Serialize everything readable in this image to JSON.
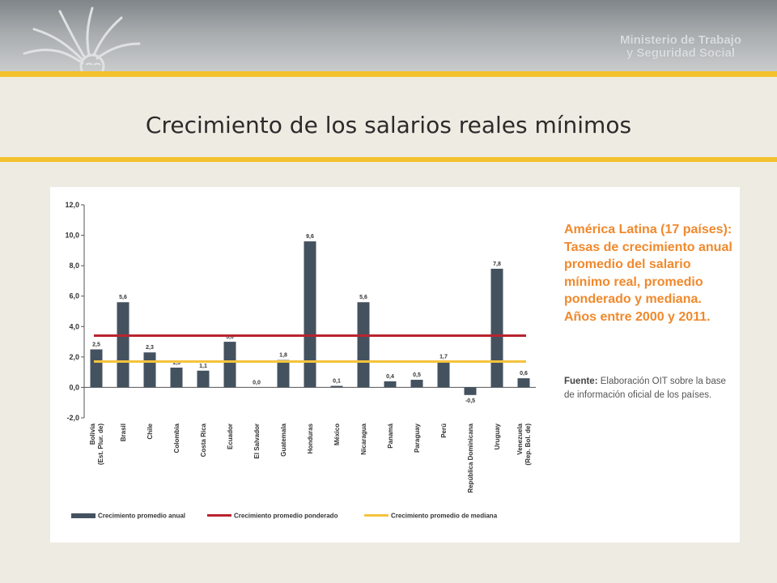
{
  "header": {
    "ministry_line1": "Ministerio de Trabajo",
    "ministry_line2": "y Seguridad Social",
    "logo_icon": "sun-icon"
  },
  "slide": {
    "title": "Crecimiento de los salarios reales mínimos"
  },
  "side_note": {
    "title": "América Latina (17 países): Tasas de crecimiento anual promedio del salario mínimo real, promedio ponderado y mediana. Años entre 2000 y 2011.",
    "source_label": "Fuente:",
    "source_text": "Elaboración OIT sobre la base de información oficial de los países."
  },
  "colors": {
    "bar": "#44525f",
    "weighted_line": "#b8242f",
    "median_line": "#f5c33d",
    "accent": "#f4c12e",
    "side_title": "#f0892c"
  },
  "chart_data": {
    "type": "bar",
    "categories": [
      "Bolivia (Est. Plur. de)",
      "Brasil",
      "Chile",
      "Colombia",
      "Costa Rica",
      "Ecuador",
      "El Salvador",
      "Guatemala",
      "Honduras",
      "México",
      "Nicaragua",
      "Panamá",
      "Paraguay",
      "Perú",
      "República Dominicana",
      "Uruguay",
      "Venezuela (Rep. Bol. de)"
    ],
    "series": [
      {
        "name": "Crecimiento promedio anual",
        "values": [
          2.5,
          5.6,
          2.3,
          1.3,
          1.1,
          3.0,
          0.0,
          1.8,
          9.6,
          0.1,
          5.6,
          0.4,
          0.5,
          1.7,
          -0.5,
          7.8,
          0.6
        ],
        "labels": [
          "2,5",
          "5,6",
          "2,3",
          "1,3",
          "1,1",
          "3,0",
          "0,0",
          "1,8",
          "9,6",
          "0,1",
          "5,6",
          "0,4",
          "0,5",
          "1,7",
          "-0,5",
          "7,8",
          "0,6"
        ]
      }
    ],
    "reference_lines": [
      {
        "name": "Crecimiento promedio ponderado",
        "value": 3.4
      },
      {
        "name": "Crecimiento promedio de mediana",
        "value": 1.7
      }
    ],
    "ylim": [
      -2,
      12
    ],
    "yticks": [
      -2,
      0,
      2,
      4,
      6,
      8,
      10,
      12
    ],
    "ytick_labels": [
      "-2,0",
      "0,0",
      "2,0",
      "4,0",
      "6,0",
      "8,0",
      "10,0",
      "12,0"
    ],
    "grid": false,
    "legend_position": "bottom"
  }
}
